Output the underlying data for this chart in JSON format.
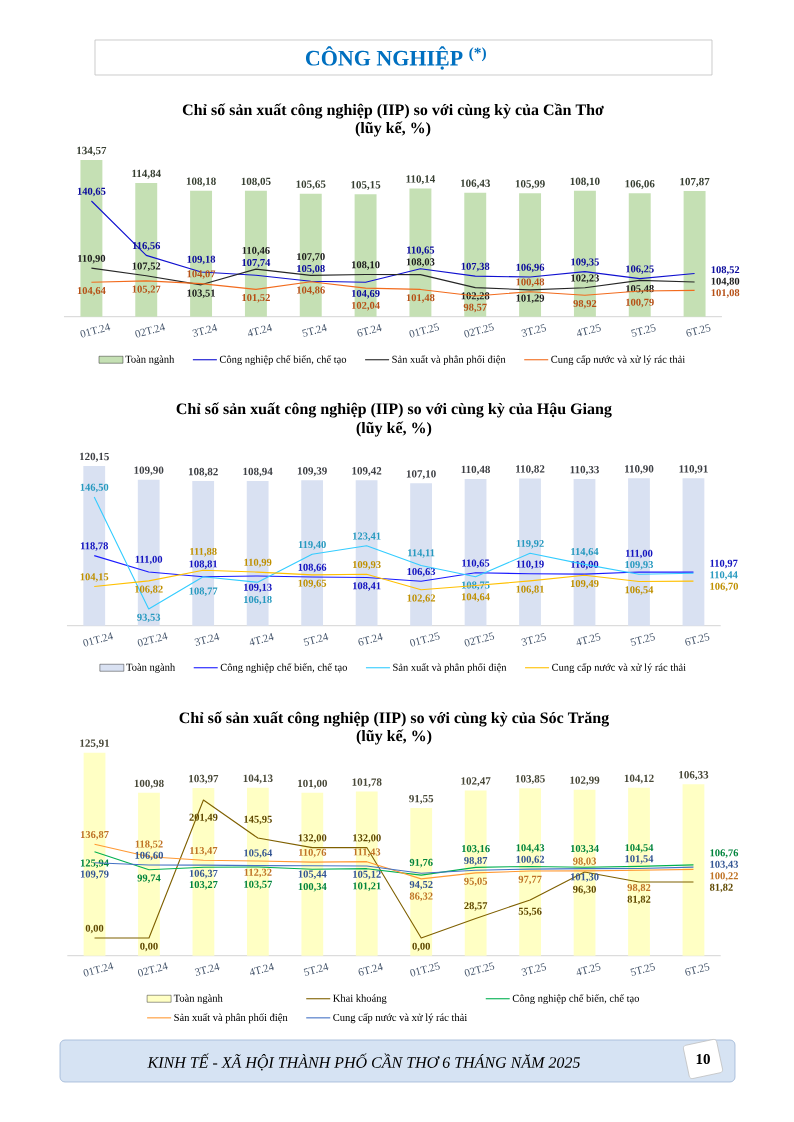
{
  "chart_data": [
    {
      "type": "bar",
      "title": "Chỉ số sản xuất công nghiệp (IIP) so với cùng kỳ của Cần Thơ",
      "subtitle": "(lũy kế, %)",
      "annotations": [
        "CÔNG NGHIỆP $^{(*)}$"
      ],
      "categories": [
        "01T.24",
        "02T.24",
        "3T.24",
        "4T.24",
        "5T.24",
        "6T.24",
        "01T.25",
        "02T.25",
        "3T.25",
        "4T.25",
        "5T.25",
        "6T.25"
      ],
      "series": [
        {
          "name": "Toàn ngành",
          "color": "#c5e0b4",
          "values": [
            134.57,
            114.84,
            108.18,
            108.05,
            105.65,
            105.15,
            110.14,
            106.43,
            105.99,
            108.1,
            106.06,
            107.87
          ],
          "value_labels": [
            "134,57",
            "114,84",
            "108,18",
            "108,05",
            "105,65",
            "105,15",
            "110,14",
            "106,43",
            "105,99",
            "108,10",
            "106,06",
            "107,87"
          ]
        },
        {
          "name": "Công nghiệp chế biến, chế tạo",
          "type": "line",
          "axis": "y2",
          "color": "#1010d0",
          "values": [
            140.65,
            116.56,
            109.18,
            107.74,
            105.08,
            104.69,
            110.65,
            107.38,
            106.96,
            109.35,
            106.25,
            108.52
          ],
          "value_labels": [
            "140,65",
            "116,56",
            "109,18",
            "107,74",
            "105,08",
            "104,69",
            "110,65",
            "107,38",
            "106,96",
            "109,35",
            "106,25",
            "108,52"
          ]
        },
        {
          "name": "Sản xuất và phân phối điện",
          "type": "line",
          "axis": "y2",
          "color": "#262626",
          "values": [
            110.9,
            107.52,
            103.51,
            110.46,
            107.7,
            108.1,
            108.03,
            102.28,
            101.29,
            102.23,
            105.48,
            104.8
          ],
          "value_labels": [
            "110,90",
            "107,52",
            "103,51",
            "110,46",
            "107,70",
            "108,10",
            "108,03",
            "102,28",
            "101,29",
            "102,23",
            "105,48",
            "104,80"
          ]
        },
        {
          "name": "Cung cấp nước và xử lý rác thải",
          "type": "line",
          "axis": "y2",
          "color": "#f26b1d",
          "values": [
            104.64,
            105.27,
            104.07,
            101.52,
            104.86,
            102.04,
            101.48,
            98.57,
            100.48,
            98.92,
            100.79,
            101.08
          ],
          "value_labels": [
            "104,64",
            "105,27",
            "104,07",
            "101,52",
            "104,86",
            "102,04",
            "101,48",
            "98,57",
            "100,48",
            "98,92",
            "100,79",
            "101,08"
          ]
        }
      ],
      "tick_labels": "x",
      "legend": "bottom"
    },
    {
      "type": "bar",
      "title": "Chỉ số sản xuất công nghiệp (IIP) so với cùng kỳ của Hậu Giang",
      "subtitle": "(lũy kế, %)",
      "categories": [
        "01T.24",
        "02T.24",
        "3T.24",
        "4T.24",
        "5T.24",
        "6T.24",
        "01T.25",
        "02T.25",
        "3T.25",
        "4T.25",
        "5T.25",
        "6T.25"
      ],
      "series": [
        {
          "name": "Toàn ngành",
          "color": "#d9e1f2",
          "values": [
            120.15,
            109.9,
            108.82,
            108.94,
            109.39,
            109.42,
            107.1,
            110.48,
            110.82,
            110.33,
            110.9,
            110.91
          ],
          "value_labels": [
            "120,15",
            "109,90",
            "108,82",
            "108,94",
            "109,39",
            "109,42",
            "107,10",
            "110,48",
            "110,82",
            "110,33",
            "110,90",
            "110,91"
          ]
        },
        {
          "name": "Công nghiệp chế biến, chế tạo",
          "type": "line",
          "axis": "y2",
          "color": "#1a1aff",
          "values": [
            118.78,
            111.0,
            108.81,
            109.13,
            108.66,
            108.41,
            106.63,
            110.65,
            110.19,
            110.0,
            111.0,
            110.97
          ],
          "value_labels": [
            "118,78",
            "111,00",
            "108,81",
            "109,13",
            "108,66",
            "108,41",
            "106,63",
            "110,65",
            "110,19",
            "110,00",
            "111,00",
            "110,97"
          ]
        },
        {
          "name": "Sản xuất và phân phối điện",
          "type": "line",
          "axis": "y2",
          "color": "#33ccff",
          "values": [
            146.5,
            93.53,
            108.77,
            106.18,
            119.4,
            123.41,
            114.11,
            108.75,
            119.92,
            114.64,
            109.93,
            110.44
          ],
          "value_labels": [
            "146,50",
            "93,53",
            "108,77",
            "106,18",
            "119,40",
            "123,41",
            "114,11",
            "108,75",
            "119,92",
            "114,64",
            "109,93",
            "110,44"
          ]
        },
        {
          "name": "Cung cấp nước và xử lý rác thải",
          "type": "line",
          "axis": "y2",
          "color": "#ffc000",
          "values": [
            104.15,
            106.82,
            111.88,
            110.99,
            109.65,
            109.93,
            102.62,
            104.64,
            106.81,
            109.49,
            106.54,
            106.7
          ],
          "value_labels": [
            "104,15",
            "106,82",
            "111,88",
            "110,99",
            "109,65",
            "109,93",
            "102,62",
            "104,64",
            "106,81",
            "109,49",
            "106,54",
            "106,70"
          ]
        }
      ],
      "tick_labels": "x",
      "legend": "bottom"
    },
    {
      "type": "bar",
      "title": "Chỉ số sản xuất công nghiệp (IIP) so với cùng kỳ của Sóc Trăng",
      "subtitle": "(lũy kế, %)",
      "annotations": [
        "KINH TẾ - XÃ HỘI THÀNH PHỐ CẦN THƠ 6 THÁNG NĂM 2025",
        "10"
      ],
      "categories": [
        "01T.24",
        "02T.24",
        "3T.24",
        "4T.24",
        "5T.24",
        "6T.24",
        "01T.25",
        "02T.25",
        "3T.25",
        "4T.25",
        "5T.25",
        "6T.25"
      ],
      "series": [
        {
          "name": "Toàn ngành",
          "color": "#ffffc4",
          "values": [
            125.91,
            100.98,
            103.97,
            104.13,
            101.0,
            101.78,
            91.55,
            102.47,
            103.85,
            102.99,
            104.12,
            106.33
          ],
          "value_labels": [
            "125,91",
            "100,98",
            "103,97",
            "104,13",
            "101,00",
            "101,78",
            "91,55",
            "102,47",
            "103,85",
            "102,99",
            "104,12",
            "106,33"
          ]
        },
        {
          "name": "Khai khoáng",
          "type": "line",
          "axis": "y2",
          "color": "#7f6000",
          "values": [
            0.0,
            0.0,
            201.49,
            145.95,
            132.0,
            132.0,
            0.0,
            28.57,
            55.56,
            96.3,
            81.82,
            81.82
          ],
          "value_labels": [
            "0,00",
            "0,00",
            "201,49",
            "145,95",
            "132,00",
            "132,00",
            "0,00",
            "28,57",
            "55,56",
            "96,30",
            "81,82",
            "81,82"
          ]
        },
        {
          "name": "Công nghiệp chế biến, chế tạo",
          "type": "line",
          "axis": "y2",
          "color": "#00b050",
          "values": [
            125.94,
            99.74,
            103.27,
            103.57,
            100.34,
            101.21,
            91.76,
            103.16,
            104.43,
            103.34,
            104.54,
            106.76
          ],
          "value_labels": [
            "125,94",
            "99,74",
            "103,27",
            "103,57",
            "100,34",
            "101,21",
            "91,76",
            "103,16",
            "104,43",
            "103,34",
            "104,54",
            "106,76"
          ]
        },
        {
          "name": "Sản xuất và phân phối điện",
          "type": "line",
          "axis": "y2",
          "color": "#ff9933",
          "values": [
            136.87,
            118.52,
            113.47,
            112.32,
            110.76,
            111.43,
            86.32,
            95.05,
            97.77,
            98.03,
            98.82,
            100.22
          ],
          "value_labels": [
            "136,87",
            "118,52",
            "113,47",
            "112,32",
            "110,76",
            "111,43",
            "86,32",
            "95,05",
            "97,77",
            "98,03",
            "98,82",
            "100,22"
          ]
        },
        {
          "name": "Cung cấp nước và xử lý rác thải",
          "type": "line",
          "axis": "y2",
          "color": "#4472c4",
          "values": [
            109.79,
            106.6,
            106.37,
            105.64,
            105.44,
            105.12,
            94.52,
            98.87,
            100.62,
            101.3,
            101.54,
            103.43
          ],
          "value_labels": [
            "109,79",
            "106,60",
            "106,37",
            "105,64",
            "105,44",
            "105,12",
            "94,52",
            "98,87",
            "100,62",
            "101,30",
            "101,54",
            "103,43"
          ]
        }
      ],
      "tick_labels": "x",
      "legend": "bottom"
    }
  ]
}
